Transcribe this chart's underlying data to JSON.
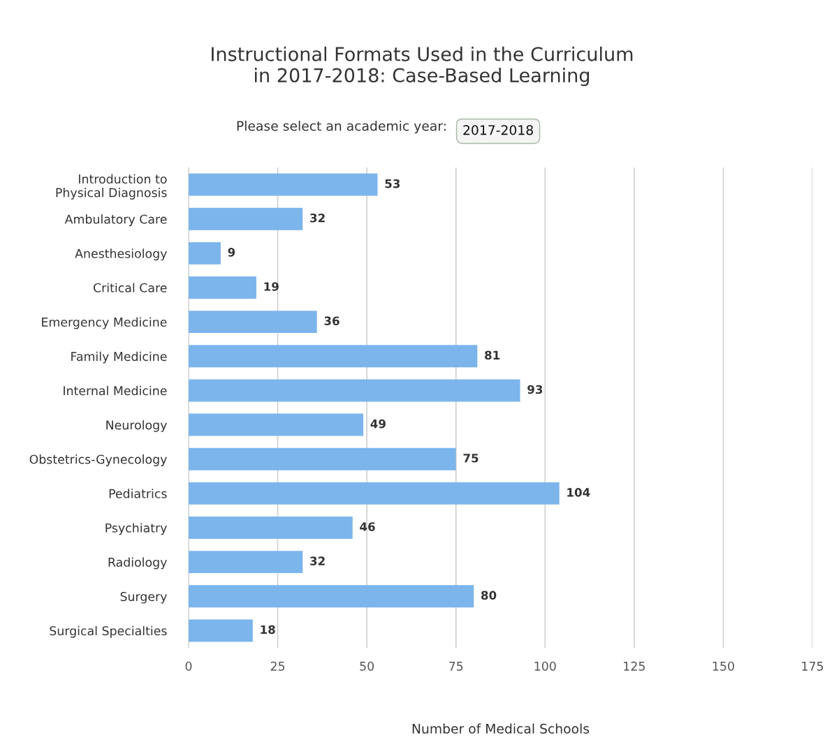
{
  "chart_data": {
    "type": "bar",
    "orientation": "horizontal",
    "title": "Instructional Formats Used in the Curriculum\nin 2017-2018: Case-Based Learning",
    "annotations": [
      "Please select an academic year:",
      "2017-2018"
    ],
    "xlabel": "Number of Medical Schools",
    "categories": [
      "Introduction to\nPhysical Diagnosis",
      "Ambulatory Care",
      "Anesthesiology",
      "Critical Care",
      "Emergency Medicine",
      "Family Medicine",
      "Internal Medicine",
      "Neurology",
      "Obstetrics-Gynecology",
      "Pediatrics",
      "Psychiatry",
      "Radiology",
      "Surgery",
      "Surgical Specialties"
    ],
    "values": [
      53,
      32,
      9,
      19,
      36,
      81,
      93,
      49,
      75,
      104,
      46,
      32,
      80,
      18
    ],
    "color": "#7cb5ec",
    "xlim": [
      0,
      175
    ],
    "xticks": [
      0,
      25,
      50,
      75,
      100,
      125,
      150,
      175
    ],
    "grid": "x",
    "data_labels": true
  }
}
